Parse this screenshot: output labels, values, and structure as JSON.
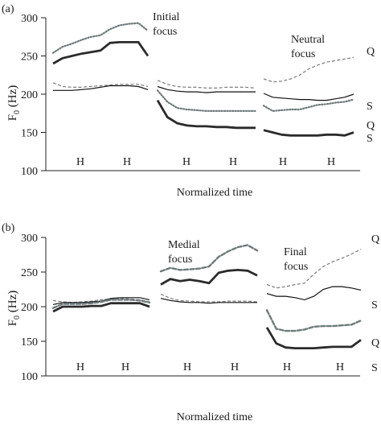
{
  "chart_data": [
    {
      "type": "line",
      "panel_label": "(a)",
      "ylabel": "F",
      "ylabel_sub": "0",
      "ylabel_unit": " (Hz)",
      "xlabel": "Normalized time",
      "ylim": [
        100,
        300
      ],
      "yticks": [
        100,
        150,
        200,
        250,
        300
      ],
      "h_markers": [
        "H",
        "H",
        "H",
        "H",
        "H",
        "H"
      ],
      "focus_labels": [
        {
          "lines": [
            "Initial",
            "focus"
          ],
          "segment": 1
        },
        {
          "lines": [
            "Neutral",
            "focus"
          ],
          "segment": 3
        }
      ],
      "end_labels": [
        "Q",
        "S",
        "Q",
        "S"
      ],
      "segments": [
        {
          "x": [
            0,
            0.1,
            0.2,
            0.3,
            0.4,
            0.5,
            0.6,
            0.7,
            0.8,
            0.9,
            1.0
          ],
          "series": [
            {
              "name": "dashed",
              "values": [
                215,
                210,
                209,
                209,
                210,
                211,
                212,
                213,
                213,
                213,
                210
              ]
            },
            {
              "name": "thin",
              "values": [
                205,
                205,
                205,
                206,
                207,
                209,
                211,
                211,
                211,
                210,
                206
              ]
            },
            {
              "name": "dotted",
              "values": [
                254,
                262,
                266,
                271,
                275,
                277,
                285,
                290,
                292,
                293,
                283
              ]
            },
            {
              "name": "thick",
              "values": [
                240,
                247,
                250,
                253,
                255,
                257,
                267,
                268,
                268,
                268,
                250
              ]
            }
          ]
        },
        {
          "x": [
            0,
            0.1,
            0.2,
            0.3,
            0.4,
            0.5,
            0.6,
            0.7,
            0.8,
            0.9,
            1.0
          ],
          "series": [
            {
              "name": "dashed",
              "values": [
                218,
                213,
                210,
                209,
                209,
                208,
                208,
                209,
                209,
                209,
                208
              ]
            },
            {
              "name": "thin",
              "values": [
                210,
                206,
                204,
                203,
                203,
                202,
                203,
                203,
                203,
                203,
                203
              ]
            },
            {
              "name": "dotted",
              "values": [
                205,
                190,
                182,
                180,
                179,
                178,
                178,
                178,
                178,
                178,
                178
              ]
            },
            {
              "name": "thick",
              "values": [
                192,
                170,
                162,
                159,
                158,
                158,
                157,
                157,
                156,
                156,
                156
              ]
            }
          ]
        },
        {
          "x": [
            0,
            0.1,
            0.2,
            0.3,
            0.4,
            0.5,
            0.6,
            0.7,
            0.8,
            0.9,
            1.0
          ],
          "series": [
            {
              "name": "dashed",
              "values": [
                220,
                216,
                217,
                220,
                225,
                233,
                238,
                242,
                244,
                246,
                248
              ]
            },
            {
              "name": "thin",
              "values": [
                201,
                196,
                195,
                194,
                193,
                193,
                192,
                192,
                194,
                196,
                200
              ]
            },
            {
              "name": "dotted",
              "values": [
                185,
                178,
                179,
                180,
                180,
                183,
                186,
                187,
                189,
                190,
                193
              ]
            },
            {
              "name": "thick",
              "values": [
                153,
                150,
                147,
                146,
                146,
                146,
                146,
                147,
                147,
                146,
                150
              ]
            }
          ]
        }
      ]
    },
    {
      "type": "line",
      "panel_label": "(b)",
      "ylabel": "F",
      "ylabel_sub": "0",
      "ylabel_unit": " (Hz)",
      "xlabel": "Normalized time",
      "ylim": [
        100,
        300
      ],
      "yticks": [
        100,
        150,
        200,
        250,
        300
      ],
      "h_markers": [
        "H",
        "H",
        "H",
        "H",
        "H",
        "H"
      ],
      "focus_labels": [
        {
          "lines": [
            "Medial",
            "focus"
          ],
          "segment": 2
        },
        {
          "lines": [
            "Final",
            "focus"
          ],
          "segment": 3
        }
      ],
      "end_labels": [
        "Q",
        "S",
        "Q",
        "S"
      ],
      "segments": [
        {
          "x": [
            0,
            0.1,
            0.2,
            0.3,
            0.4,
            0.5,
            0.6,
            0.7,
            0.8,
            0.9,
            1.0
          ],
          "series": [
            {
              "name": "dashed",
              "values": [
                209,
                207,
                206,
                207,
                208,
                210,
                211,
                212,
                211,
                210,
                207
              ]
            },
            {
              "name": "thin",
              "values": [
                203,
                206,
                206,
                206,
                207,
                208,
                212,
                213,
                213,
                213,
                210
              ]
            },
            {
              "name": "dotted",
              "values": [
                198,
                204,
                204,
                204,
                205,
                207,
                210,
                210,
                210,
                209,
                206
              ]
            },
            {
              "name": "thick",
              "values": [
                193,
                200,
                200,
                200,
                201,
                201,
                205,
                205,
                205,
                205,
                200
              ]
            }
          ]
        },
        {
          "x": [
            0,
            0.1,
            0.2,
            0.3,
            0.4,
            0.5,
            0.6,
            0.7,
            0.8,
            0.9,
            1.0
          ],
          "series": [
            {
              "name": "dashed",
              "values": [
                218,
                212,
                209,
                208,
                207,
                207,
                207,
                208,
                208,
                208,
                207
              ]
            },
            {
              "name": "thin",
              "values": [
                212,
                209,
                207,
                206,
                206,
                205,
                206,
                206,
                206,
                206,
                206
              ]
            },
            {
              "name": "dotted",
              "values": [
                251,
                256,
                253,
                254,
                255,
                258,
                272,
                280,
                286,
                289,
                281
              ]
            },
            {
              "name": "thick",
              "values": [
                232,
                240,
                237,
                239,
                237,
                234,
                249,
                252,
                253,
                252,
                245
              ]
            }
          ]
        },
        {
          "x": [
            0,
            0.1,
            0.2,
            0.3,
            0.4,
            0.5,
            0.6,
            0.7,
            0.8,
            0.9,
            1.0
          ],
          "series": [
            {
              "name": "dashed",
              "values": [
                232,
                227,
                229,
                232,
                234,
                247,
                258,
                265,
                270,
                276,
                283
              ]
            },
            {
              "name": "thin",
              "values": [
                219,
                215,
                215,
                213,
                210,
                215,
                225,
                229,
                229,
                227,
                224
              ]
            },
            {
              "name": "dotted",
              "values": [
                195,
                168,
                165,
                165,
                167,
                171,
                172,
                172,
                173,
                174,
                180
              ]
            },
            {
              "name": "thick",
              "values": [
                170,
                147,
                141,
                140,
                140,
                140,
                141,
                142,
                142,
                142,
                152
              ]
            }
          ]
        }
      ]
    }
  ]
}
